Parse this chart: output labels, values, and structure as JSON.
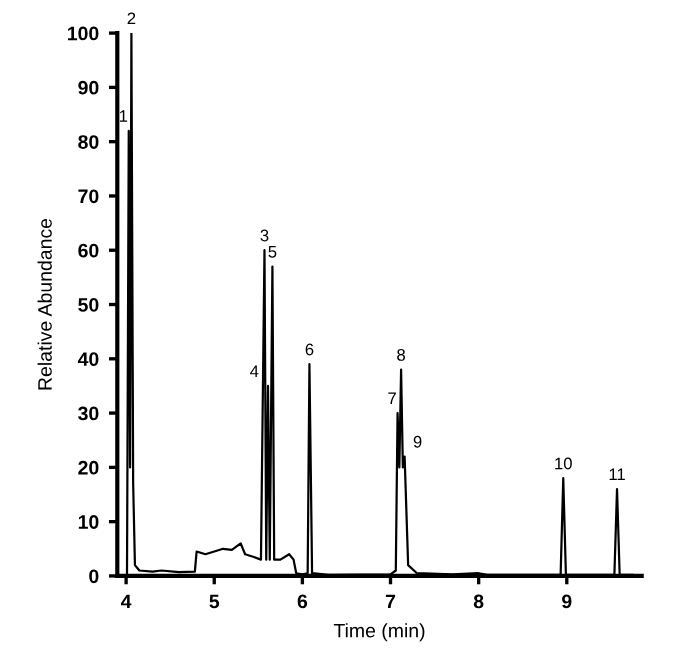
{
  "chart_data": {
    "type": "line",
    "xlabel": "Time (min)",
    "ylabel": "Relative Abundance",
    "x": [
      3.98,
      4.01,
      4.03,
      4.045,
      4.06,
      4.08,
      4.1,
      4.15,
      4.3,
      4.4,
      4.6,
      4.78,
      4.8,
      4.9,
      5.0,
      5.1,
      5.2,
      5.3,
      5.35,
      5.45,
      5.53,
      5.57,
      5.59,
      5.61,
      5.63,
      5.66,
      5.68,
      5.75,
      5.85,
      5.9,
      5.93,
      6.0,
      6.06,
      6.08,
      6.11,
      6.3,
      7.0,
      7.06,
      7.08,
      7.1,
      7.12,
      7.14,
      7.16,
      7.2,
      7.3,
      7.7,
      8.0,
      8.1,
      8.93,
      8.96,
      8.99,
      9.54,
      9.57,
      9.6,
      9.75
    ],
    "series": [
      {
        "color": "#000000",
        "values": [
          0,
          0,
          82,
          20,
          100,
          17,
          2,
          1,
          0.8,
          1,
          0.7,
          0.8,
          4.5,
          4,
          4.5,
          5,
          4.8,
          6,
          4,
          3.5,
          3,
          60,
          3,
          35,
          3,
          57,
          3,
          3,
          4,
          3,
          0.5,
          0.3,
          0.5,
          39,
          0.5,
          0.2,
          0.3,
          1,
          30,
          20,
          38,
          20,
          22,
          2,
          0.5,
          0.3,
          0.5,
          0.2,
          0.2,
          18,
          0.2,
          0.2,
          16,
          0.2,
          0.2
        ]
      }
    ],
    "xlim": [
      3.9,
      9.85
    ],
    "xticks": [
      4,
      5,
      6,
      7,
      8,
      9
    ],
    "ylim": [
      0,
      100
    ],
    "yticks": [
      0,
      10,
      20,
      30,
      40,
      50,
      60,
      70,
      80,
      90,
      100
    ],
    "grid": false,
    "legend": false,
    "marker": "none",
    "line_style": "solid",
    "annotations": [
      {
        "text": "1",
        "x": 4.03,
        "y": 82
      },
      {
        "text": "2",
        "x": 4.06,
        "y": 100
      },
      {
        "text": "3",
        "x": 5.57,
        "y": 60
      },
      {
        "text": "4",
        "x": 5.61,
        "y": 35
      },
      {
        "text": "5",
        "x": 5.66,
        "y": 57
      },
      {
        "text": "6",
        "x": 6.08,
        "y": 39
      },
      {
        "text": "7",
        "x": 7.08,
        "y": 30
      },
      {
        "text": "8",
        "x": 7.12,
        "y": 38
      },
      {
        "text": "9",
        "x": 7.16,
        "y": 22
      },
      {
        "text": "10",
        "x": 8.96,
        "y": 18
      },
      {
        "text": "11",
        "x": 9.57,
        "y": 16
      }
    ]
  }
}
